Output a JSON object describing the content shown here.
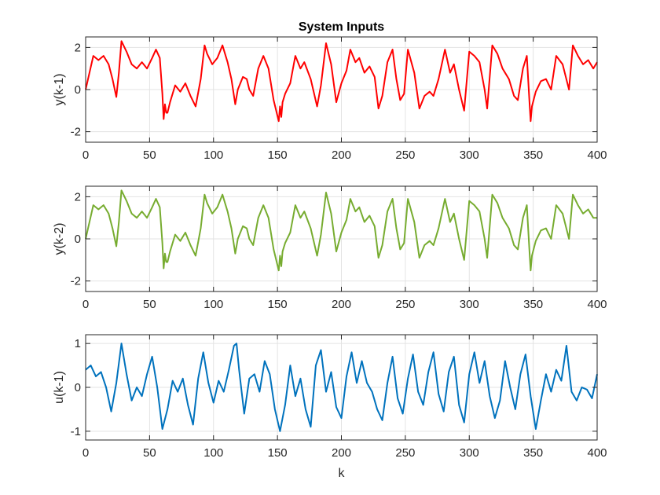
{
  "chart_data": [
    {
      "type": "line",
      "title": "System Inputs",
      "ylabel": "y(k-1)",
      "xlabel": "",
      "xlim": [
        0,
        400
      ],
      "ylim": [
        -2.5,
        2.5
      ],
      "xticks": [
        0,
        50,
        100,
        150,
        200,
        250,
        300,
        350,
        400
      ],
      "yticks": [
        -2,
        0,
        2
      ],
      "grid": true,
      "color": "#ff0000",
      "series": [
        {
          "x": [
            0,
            3,
            6,
            10,
            14,
            18,
            21,
            24,
            26,
            28,
            32,
            36,
            40,
            44,
            48,
            52,
            55,
            58,
            60,
            61,
            62,
            63,
            64,
            66,
            70,
            74,
            78,
            82,
            86,
            90,
            93,
            95,
            99,
            103,
            107,
            111,
            114,
            117,
            119,
            123,
            126,
            128,
            131,
            135,
            139,
            143,
            147,
            151,
            152,
            153,
            154,
            156,
            160,
            164,
            168,
            171,
            176,
            181,
            184,
            188,
            192,
            196,
            200,
            204,
            207,
            211,
            214,
            218,
            222,
            226,
            229,
            232,
            236,
            240,
            243,
            246,
            249,
            252,
            257,
            261,
            265,
            269,
            272,
            276,
            281,
            285,
            288,
            292,
            296,
            300,
            304,
            308,
            312,
            314,
            318,
            322,
            326,
            331,
            335,
            338,
            342,
            345,
            347,
            348,
            349,
            352,
            356,
            360,
            364,
            368,
            373,
            378,
            381,
            385,
            389,
            393,
            397,
            400
          ],
          "y": [
            0,
            0.8,
            1.6,
            1.4,
            1.6,
            1.2,
            0.5,
            -0.35,
            0.8,
            2.3,
            1.8,
            1.2,
            1.0,
            1.3,
            1.0,
            1.5,
            1.9,
            1.5,
            -0.2,
            -1.4,
            -0.7,
            -1.1,
            -1.1,
            -0.6,
            0.2,
            -0.1,
            0.3,
            -0.3,
            -0.8,
            0.5,
            2.1,
            1.7,
            1.2,
            1.5,
            2.1,
            1.3,
            0.5,
            -0.7,
            0.0,
            0.6,
            0.5,
            0.0,
            -0.3,
            1.0,
            1.6,
            1.0,
            -0.5,
            -1.5,
            -0.8,
            -1.3,
            -0.6,
            -0.2,
            0.3,
            1.6,
            1.0,
            1.3,
            0.5,
            -0.8,
            0.2,
            2.2,
            1.2,
            -0.6,
            0.3,
            0.9,
            1.9,
            1.3,
            1.5,
            0.8,
            1.1,
            0.6,
            -0.9,
            -0.3,
            1.3,
            1.9,
            0.5,
            -0.5,
            -0.2,
            1.9,
            0.8,
            -0.9,
            -0.3,
            -0.1,
            -0.3,
            0.5,
            1.9,
            0.8,
            1.2,
            0.0,
            -1.0,
            1.8,
            1.6,
            1.3,
            0.0,
            -0.9,
            2.1,
            1.7,
            1.0,
            0.5,
            -0.3,
            -0.5,
            1.0,
            1.6,
            -0.5,
            -1.5,
            -0.8,
            -0.1,
            0.4,
            0.5,
            0.0,
            1.6,
            1.2,
            0.0,
            2.1,
            1.6,
            1.2,
            1.4,
            1.0,
            1.3
          ]
        }
      ]
    },
    {
      "type": "line",
      "title": "",
      "ylabel": "y(k-2)",
      "xlabel": "",
      "xlim": [
        0,
        400
      ],
      "ylim": [
        -2.5,
        2.5
      ],
      "xticks": [
        0,
        50,
        100,
        150,
        200,
        250,
        300,
        350,
        400
      ],
      "yticks": [
        -2,
        0,
        2
      ],
      "grid": true,
      "color": "#77ac30",
      "series": [
        {
          "x": [
            0,
            3,
            6,
            10,
            14,
            18,
            21,
            24,
            26,
            28,
            32,
            36,
            40,
            44,
            48,
            52,
            55,
            58,
            60,
            61,
            62,
            63,
            64,
            66,
            70,
            74,
            78,
            82,
            86,
            90,
            93,
            95,
            99,
            103,
            107,
            111,
            114,
            117,
            119,
            123,
            126,
            128,
            131,
            135,
            139,
            143,
            147,
            151,
            152,
            153,
            154,
            156,
            160,
            164,
            168,
            171,
            176,
            181,
            184,
            188,
            192,
            196,
            200,
            204,
            207,
            211,
            214,
            218,
            222,
            226,
            229,
            232,
            236,
            240,
            243,
            246,
            249,
            252,
            257,
            261,
            265,
            269,
            272,
            276,
            281,
            285,
            288,
            292,
            296,
            300,
            304,
            308,
            312,
            314,
            318,
            322,
            326,
            331,
            335,
            338,
            342,
            345,
            347,
            348,
            349,
            352,
            356,
            360,
            364,
            368,
            373,
            378,
            381,
            385,
            389,
            393,
            397,
            400
          ],
          "y": [
            0,
            0.8,
            1.6,
            1.4,
            1.6,
            1.2,
            0.5,
            -0.35,
            0.8,
            2.3,
            1.8,
            1.2,
            1.0,
            1.3,
            1.0,
            1.5,
            1.9,
            1.5,
            -0.2,
            -1.4,
            -0.7,
            -1.1,
            -1.1,
            -0.6,
            0.2,
            -0.1,
            0.3,
            -0.3,
            -0.8,
            0.5,
            2.1,
            1.7,
            1.2,
            1.5,
            2.1,
            1.3,
            0.5,
            -0.7,
            0.0,
            0.6,
            0.5,
            0.0,
            -0.3,
            1.0,
            1.6,
            1.0,
            -0.5,
            -1.5,
            -0.8,
            -1.3,
            -0.6,
            -0.2,
            0.3,
            1.6,
            1.0,
            1.3,
            0.5,
            -0.8,
            0.2,
            2.2,
            1.2,
            -0.6,
            0.3,
            0.9,
            1.9,
            1.3,
            1.5,
            0.8,
            1.1,
            0.6,
            -0.9,
            -0.3,
            1.3,
            1.9,
            0.5,
            -0.5,
            -0.2,
            1.9,
            0.8,
            -0.9,
            -0.3,
            -0.1,
            -0.3,
            0.5,
            1.9,
            0.8,
            1.2,
            0.0,
            -1.0,
            1.8,
            1.6,
            1.3,
            0.0,
            -0.9,
            2.1,
            1.7,
            1.0,
            0.5,
            -0.3,
            -0.5,
            1.0,
            1.6,
            -0.5,
            -1.5,
            -0.8,
            -0.1,
            0.4,
            0.5,
            0.0,
            1.6,
            1.2,
            0.0,
            2.1,
            1.6,
            1.2,
            1.4,
            1.0,
            1.0
          ]
        }
      ]
    },
    {
      "type": "line",
      "title": "",
      "ylabel": "u(k-1)",
      "xlabel": "k",
      "xlim": [
        0,
        400
      ],
      "ylim": [
        -1.2,
        1.2
      ],
      "xticks": [
        0,
        50,
        100,
        150,
        200,
        250,
        300,
        350,
        400
      ],
      "yticks": [
        -1,
        0,
        1
      ],
      "grid": true,
      "color": "#0072bd",
      "series": [
        {
          "x": [
            0,
            4,
            8,
            12,
            16,
            20,
            24,
            28,
            32,
            36,
            40,
            44,
            48,
            52,
            56,
            60,
            64,
            68,
            72,
            76,
            80,
            84,
            88,
            92,
            96,
            100,
            104,
            108,
            112,
            116,
            118,
            120,
            124,
            128,
            132,
            136,
            140,
            144,
            148,
            152,
            156,
            160,
            164,
            168,
            172,
            176,
            180,
            184,
            188,
            192,
            196,
            200,
            204,
            208,
            212,
            216,
            220,
            224,
            228,
            232,
            236,
            240,
            244,
            248,
            252,
            256,
            260,
            264,
            268,
            272,
            276,
            280,
            284,
            288,
            292,
            296,
            300,
            304,
            308,
            312,
            316,
            320,
            324,
            328,
            332,
            336,
            340,
            344,
            348,
            352,
            356,
            360,
            364,
            368,
            372,
            376,
            380,
            384,
            388,
            392,
            396,
            400
          ],
          "y": [
            0.4,
            0.5,
            0.25,
            0.35,
            0.0,
            -0.55,
            0.1,
            1.0,
            0.3,
            -0.3,
            0.0,
            -0.2,
            0.3,
            0.7,
            0.0,
            -0.95,
            -0.5,
            0.15,
            -0.1,
            0.2,
            -0.4,
            -0.85,
            0.2,
            0.8,
            0.1,
            -0.35,
            0.15,
            -0.1,
            0.4,
            0.95,
            1.0,
            0.4,
            -0.6,
            0.2,
            0.3,
            -0.1,
            0.6,
            0.3,
            -0.5,
            -1.0,
            -0.4,
            0.5,
            -0.2,
            0.2,
            -0.5,
            -0.9,
            0.5,
            0.85,
            -0.1,
            0.35,
            -0.45,
            -0.7,
            0.25,
            0.8,
            0.1,
            0.6,
            0.1,
            -0.1,
            -0.5,
            -0.75,
            0.1,
            0.7,
            -0.25,
            -0.6,
            0.2,
            0.75,
            -0.1,
            -0.4,
            0.35,
            0.8,
            -0.15,
            -0.55,
            0.35,
            0.7,
            -0.4,
            -0.8,
            0.3,
            0.8,
            0.1,
            0.6,
            -0.2,
            -0.7,
            -0.3,
            0.6,
            0.0,
            -0.5,
            0.3,
            0.75,
            -0.2,
            -0.95,
            -0.3,
            0.3,
            -0.1,
            0.4,
            0.15,
            0.95,
            -0.1,
            -0.3,
            0.0,
            -0.05,
            -0.25,
            0.3
          ]
        }
      ]
    }
  ]
}
